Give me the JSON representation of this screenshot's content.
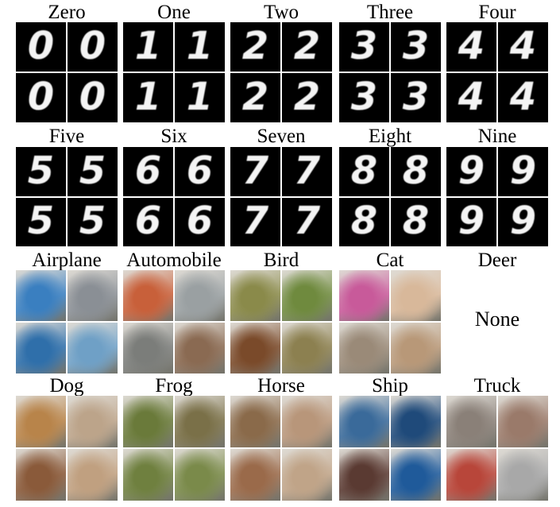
{
  "figure": {
    "digits": [
      {
        "label": "Zero",
        "glyph": "0"
      },
      {
        "label": "One",
        "glyph": "1"
      },
      {
        "label": "Two",
        "glyph": "2"
      },
      {
        "label": "Three",
        "glyph": "3"
      },
      {
        "label": "Four",
        "glyph": "4"
      },
      {
        "label": "Five",
        "glyph": "5"
      },
      {
        "label": "Six",
        "glyph": "6"
      },
      {
        "label": "Seven",
        "glyph": "7"
      },
      {
        "label": "Eight",
        "glyph": "8"
      },
      {
        "label": "Nine",
        "glyph": "9"
      }
    ],
    "objects": [
      {
        "label": "Airplane",
        "colors": [
          "#3a7fc0",
          "#8a8f95",
          "#2f6faa",
          "#6fa0c6"
        ]
      },
      {
        "label": "Automobile",
        "colors": [
          "#c8603a",
          "#9aa0a2",
          "#7b7d7a",
          "#8a6a52"
        ]
      },
      {
        "label": "Bird",
        "colors": [
          "#8a8a4a",
          "#6f8a3e",
          "#7a4a2a",
          "#8c8050"
        ]
      },
      {
        "label": "Cat",
        "colors": [
          "#c85a9a",
          "#d8b89a",
          "#9a8a78",
          "#b89878"
        ]
      },
      {
        "label": "Deer",
        "none_text": "None"
      },
      {
        "label": "Dog",
        "colors": [
          "#b8844a",
          "#bca48a",
          "#8a5a3a",
          "#c0a080"
        ]
      },
      {
        "label": "Frog",
        "colors": [
          "#6a7a3a",
          "#7a7048",
          "#6f803f",
          "#7a8a4a"
        ]
      },
      {
        "label": "Horse",
        "colors": [
          "#8a6a4a",
          "#b8967a",
          "#9a6a4a",
          "#c0a488"
        ]
      },
      {
        "label": "Ship",
        "colors": [
          "#3a6a9a",
          "#1f4a7a",
          "#5a3a32",
          "#1f5a9a"
        ]
      },
      {
        "label": "Truck",
        "colors": [
          "#8a8078",
          "#9a7a6a",
          "#b8463a",
          "#a8a8a8"
        ]
      }
    ]
  }
}
